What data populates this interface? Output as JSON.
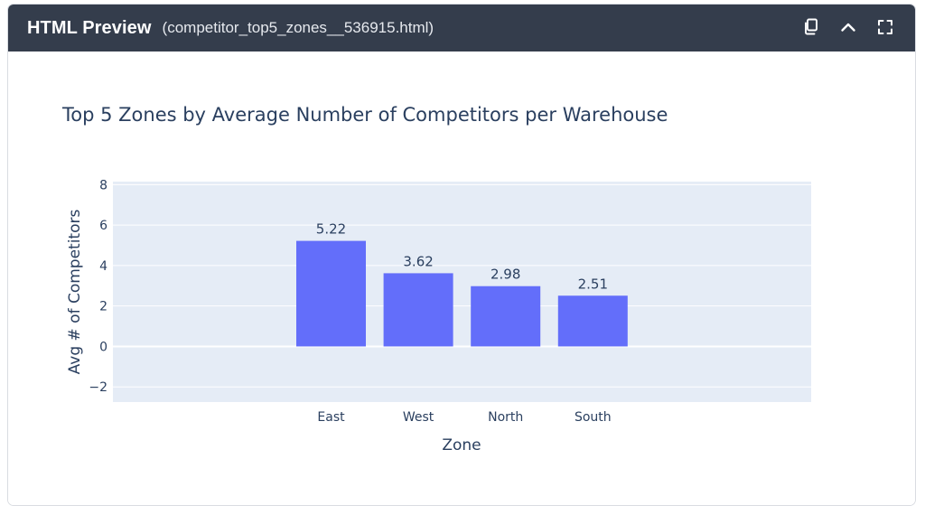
{
  "header": {
    "title": "HTML Preview",
    "filename": "(competitor_top5_zones__536915.html)"
  },
  "icons": {
    "copy": "copy-icon",
    "collapse": "chevron-up-icon",
    "fullscreen": "fullscreen-icon"
  },
  "colors": {
    "header_bg": "#343d4c",
    "plot_bg": "#e5ecf6",
    "bar": "#636efa",
    "text": "#2a3f5f"
  },
  "chart_data": {
    "type": "bar",
    "title": "Top 5 Zones by Average Number of Competitors per Warehouse",
    "xlabel": "Zone",
    "ylabel": "Avg # of Competitors",
    "categories": [
      "East",
      "West",
      "North",
      "South"
    ],
    "values": [
      5.22,
      3.62,
      2.98,
      2.51
    ],
    "value_labels": [
      "5.22",
      "3.62",
      "2.98",
      "2.51"
    ],
    "ylim": [
      -2.75,
      8.15
    ],
    "yticks": [
      -2,
      0,
      2,
      4,
      6,
      8
    ],
    "ytick_labels": [
      "−2",
      "0",
      "2",
      "4",
      "6",
      "8"
    ],
    "grid": true,
    "legend": "none"
  }
}
